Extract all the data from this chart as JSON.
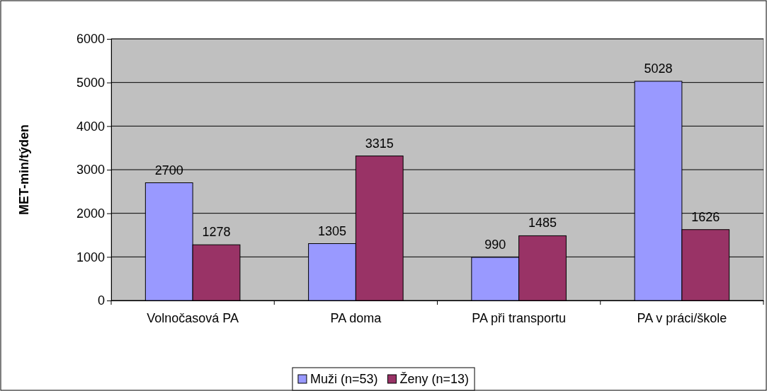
{
  "chart_data": {
    "type": "bar",
    "ylabel": "MET-min/týden",
    "categories": [
      "Volnočasová PA",
      "PA doma",
      "PA při transportu",
      "PA v práci/škole"
    ],
    "series": [
      {
        "name": "Muži (n=53)",
        "color": "#9999ff",
        "values": [
          2700,
          1305,
          990,
          5028
        ]
      },
      {
        "name": "Ženy (n=13)",
        "color": "#993366",
        "values": [
          1278,
          3315,
          1485,
          1626
        ]
      }
    ],
    "ylim": [
      0,
      6000
    ],
    "yticks": [
      0,
      1000,
      2000,
      3000,
      4000,
      5000,
      6000
    ],
    "grid": "y",
    "data_labels": true,
    "legend": "bottom"
  }
}
